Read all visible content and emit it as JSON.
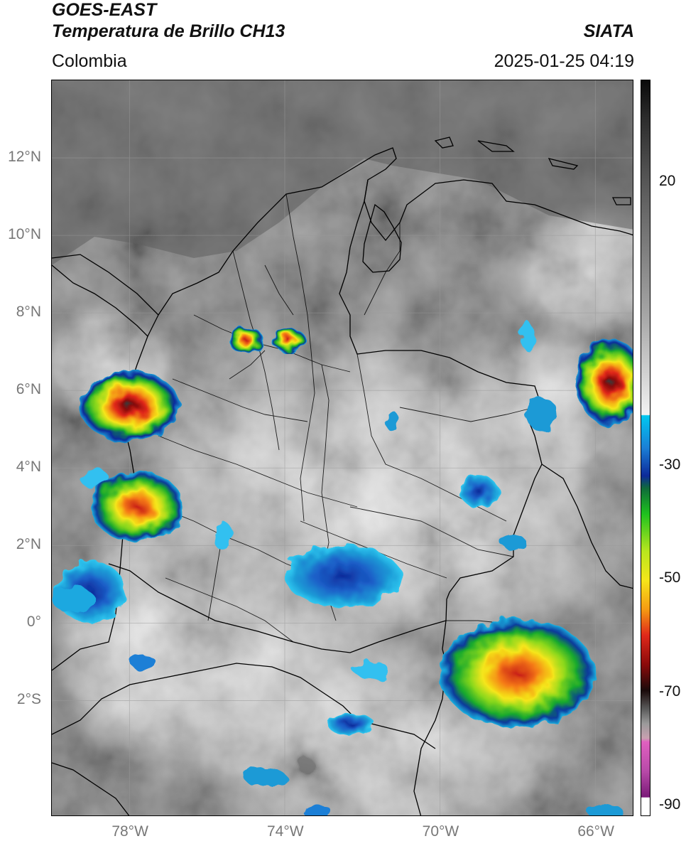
{
  "header": {
    "satellite": "GOES-EAST",
    "product": "Temperatura de Brillo CH13",
    "region": "Colombia",
    "agency": "SIATA",
    "datetime": "2025-01-25 04:19"
  },
  "axes": {
    "lat_labels": [
      "12°N",
      "10°N",
      "8°N",
      "6°N",
      "4°N",
      "2°N",
      "0°",
      "2°S"
    ],
    "lon_labels": [
      "78°W",
      "74°W",
      "70°W",
      "66°W"
    ]
  },
  "colorbar": {
    "labels": [
      "20",
      "-30",
      "-50",
      "-70",
      "-90"
    ],
    "range": [
      -92,
      38
    ]
  },
  "map": {
    "lon_range": [
      -80,
      -65
    ],
    "lat_range": [
      -5,
      14
    ],
    "grid": true,
    "storms": [
      {
        "lon": -78.0,
        "lat": 5.6,
        "rx": 1.3,
        "ry": 0.9,
        "core_temp": -75
      },
      {
        "lon": -77.8,
        "lat": 3.0,
        "rx": 1.2,
        "ry": 0.9,
        "core_temp": -60
      },
      {
        "lon": -75.0,
        "lat": 7.3,
        "rx": 0.45,
        "ry": 0.35,
        "core_temp": -62
      },
      {
        "lon": -73.9,
        "lat": 7.3,
        "rx": 0.45,
        "ry": 0.3,
        "core_temp": -62
      },
      {
        "lon": -68.0,
        "lat": -1.3,
        "rx": 2.0,
        "ry": 1.4,
        "core_temp": -62
      },
      {
        "lon": -65.6,
        "lat": 6.2,
        "rx": 0.9,
        "ry": 1.1,
        "core_temp": -66
      },
      {
        "lon": -72.5,
        "lat": 1.2,
        "rx": 1.5,
        "ry": 0.8,
        "core_temp": -35
      },
      {
        "lon": -79.0,
        "lat": 0.8,
        "rx": 0.9,
        "ry": 0.8,
        "core_temp": -25
      },
      {
        "lon": -72.3,
        "lat": -2.6,
        "rx": 0.6,
        "ry": 0.3,
        "core_temp": -35
      },
      {
        "lon": -69.0,
        "lat": 3.4,
        "rx": 0.5,
        "ry": 0.4,
        "core_temp": -35
      }
    ]
  }
}
